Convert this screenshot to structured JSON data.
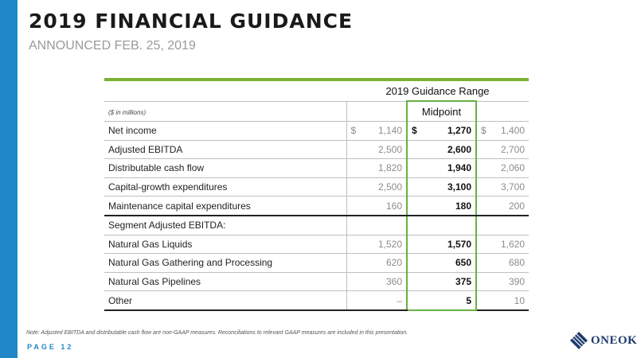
{
  "header": {
    "title": "2019 FINANCIAL GUIDANCE",
    "subtitle": "ANNOUNCED FEB. 25, 2019"
  },
  "table": {
    "range_label": "2019 Guidance Range",
    "units_label": "($ in millions)",
    "midpoint_label": "Midpoint",
    "rows": [
      {
        "label": "Net income",
        "low": "1,140",
        "mid": "1,270",
        "high": "1,400",
        "low_prefix": "$",
        "mid_prefix": "$",
        "high_prefix": "$"
      },
      {
        "label": "Adjusted EBITDA",
        "low": "2,500",
        "mid": "2,600",
        "high": "2,700"
      },
      {
        "label": "Distributable cash flow",
        "low": "1,820",
        "mid": "1,940",
        "high": "2,060"
      },
      {
        "label": "Capital-growth expenditures",
        "low": "2,500",
        "mid": "3,100",
        "high": "3,700"
      },
      {
        "label": "Maintenance capital expenditures",
        "low": "160",
        "mid": "180",
        "high": "200"
      },
      {
        "label": "Segment Adjusted EBITDA:",
        "low": "",
        "mid": "",
        "high": ""
      },
      {
        "label": "Natural Gas Liquids",
        "low": "1,520",
        "mid": "1,570",
        "high": "1,620"
      },
      {
        "label": "Natural Gas Gathering and Processing",
        "low": "620",
        "mid": "650",
        "high": "680"
      },
      {
        "label": "Natural Gas Pipelines",
        "low": "360",
        "mid": "375",
        "high": "390"
      },
      {
        "label": "Other",
        "low": "–",
        "mid": "5",
        "high": "10"
      }
    ]
  },
  "footer": {
    "note": "Note: Adjusted EBITDA and distributable cash flow are non-GAAP measures. Reconciliations to relevant GAAP measures are included in this presentation.",
    "page_label": "PAGE 12",
    "logo_text": "ONEOK"
  },
  "colors": {
    "accent_blue": "#1f87c8",
    "guidance_green": "#7bb134",
    "midpoint_box_green": "#67b145",
    "logo_navy": "#1e3c6e"
  }
}
